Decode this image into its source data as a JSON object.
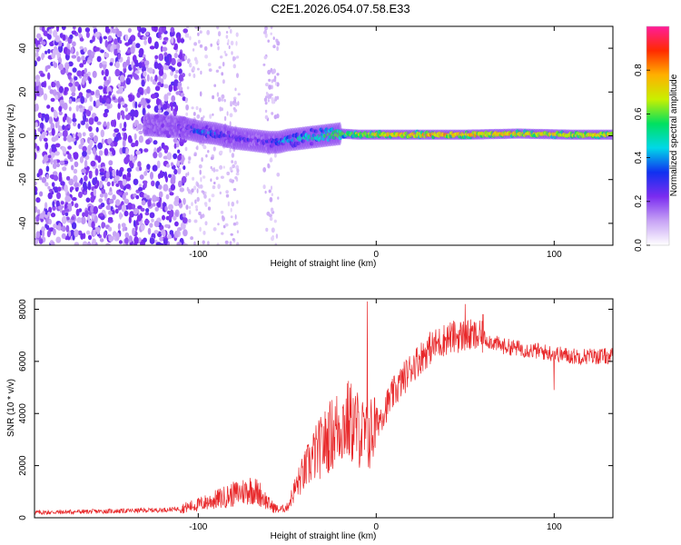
{
  "title": "C2E1.2026.054.07.58.E33",
  "colors": {
    "scatter": "#7b2cf0",
    "line": "#e8282a",
    "colorbar": [
      "#ffffff",
      "#c7a3f5",
      "#7b2cf0",
      "#1030f0",
      "#00d8e8",
      "#00e060",
      "#c8f000",
      "#ffb000",
      "#ff2a00",
      "#ff1c9a"
    ]
  },
  "chart_data": [
    {
      "type": "heatmap",
      "title": "C2E1.2026.054.07.58.E33",
      "xlabel": "Height of straight line (km)",
      "ylabel": "Frequency (Hz)",
      "xlim": [
        -192,
        133
      ],
      "ylim": [
        -50,
        50
      ],
      "xticks": [
        -100,
        0,
        100
      ],
      "xtick_labels": [
        "-100",
        "0",
        "100"
      ],
      "yticks": [
        -40,
        -20,
        0,
        20,
        40
      ],
      "ytick_labels": [
        "-40",
        "-20",
        "0",
        "20",
        "40"
      ],
      "colorbar": {
        "label": "Normalized spectral amplitude",
        "range": [
          0,
          1
        ],
        "ticks": [
          0.0,
          0.2,
          0.4,
          0.6,
          0.8
        ],
        "tick_labels": [
          "0.0",
          "0.2",
          "0.4",
          "0.6",
          "0.8"
        ]
      },
      "ridge": {
        "x": [
          -130,
          -110,
          -100,
          -90,
          -80,
          -70,
          -60,
          -55,
          -50,
          -40,
          -30,
          -20,
          -10,
          0,
          20,
          50,
          80,
          110,
          133
        ],
        "frequency": [
          5,
          4,
          2,
          1,
          -1,
          -2,
          -3,
          -3,
          -2,
          -1,
          0,
          1,
          0.5,
          0.5,
          0.5,
          0.5,
          1,
          0.5,
          0.5
        ],
        "amplitude": [
          0.2,
          0.3,
          0.45,
          0.4,
          0.35,
          0.3,
          0.35,
          0.45,
          0.5,
          0.55,
          0.6,
          0.7,
          0.75,
          0.8,
          0.85,
          0.85,
          0.8,
          0.8,
          0.8
        ]
      }
    },
    {
      "type": "line",
      "xlabel": "Height of straight line (km)",
      "ylabel": "SNR (10 * v/v)",
      "xlim": [
        -192,
        133
      ],
      "ylim": [
        0,
        8400
      ],
      "xticks": [
        -100,
        0,
        100
      ],
      "xtick_labels": [
        "-100",
        "0",
        "100"
      ],
      "yticks": [
        0,
        2000,
        4000,
        6000,
        8000
      ],
      "ytick_labels": [
        "0",
        "2000",
        "4000",
        "6000",
        "8000"
      ],
      "series": [
        {
          "name": "SNR",
          "x": [
            -192,
            -150,
            -120,
            -110,
            -100,
            -90,
            -80,
            -70,
            -65,
            -60,
            -55,
            -50,
            -45,
            -40,
            -35,
            -30,
            -25,
            -20,
            -15,
            -10,
            -5,
            0,
            10,
            20,
            30,
            40,
            50,
            60,
            70,
            80,
            90,
            100,
            110,
            120,
            133
          ],
          "y": [
            200,
            250,
            300,
            350,
            500,
            700,
            900,
            1100,
            900,
            500,
            300,
            400,
            1200,
            1800,
            2400,
            2800,
            3200,
            3600,
            3700,
            3400,
            3000,
            3600,
            4800,
            5800,
            6500,
            6900,
            7000,
            6900,
            6600,
            6500,
            6400,
            6300,
            6200,
            6200,
            6200
          ],
          "spikes": [
            {
              "x": -5,
              "y": 8300
            },
            {
              "x": 50,
              "y": 8200
            },
            {
              "x": 60,
              "y": 7800
            },
            {
              "x": 100,
              "y": 4900
            }
          ]
        }
      ]
    }
  ]
}
